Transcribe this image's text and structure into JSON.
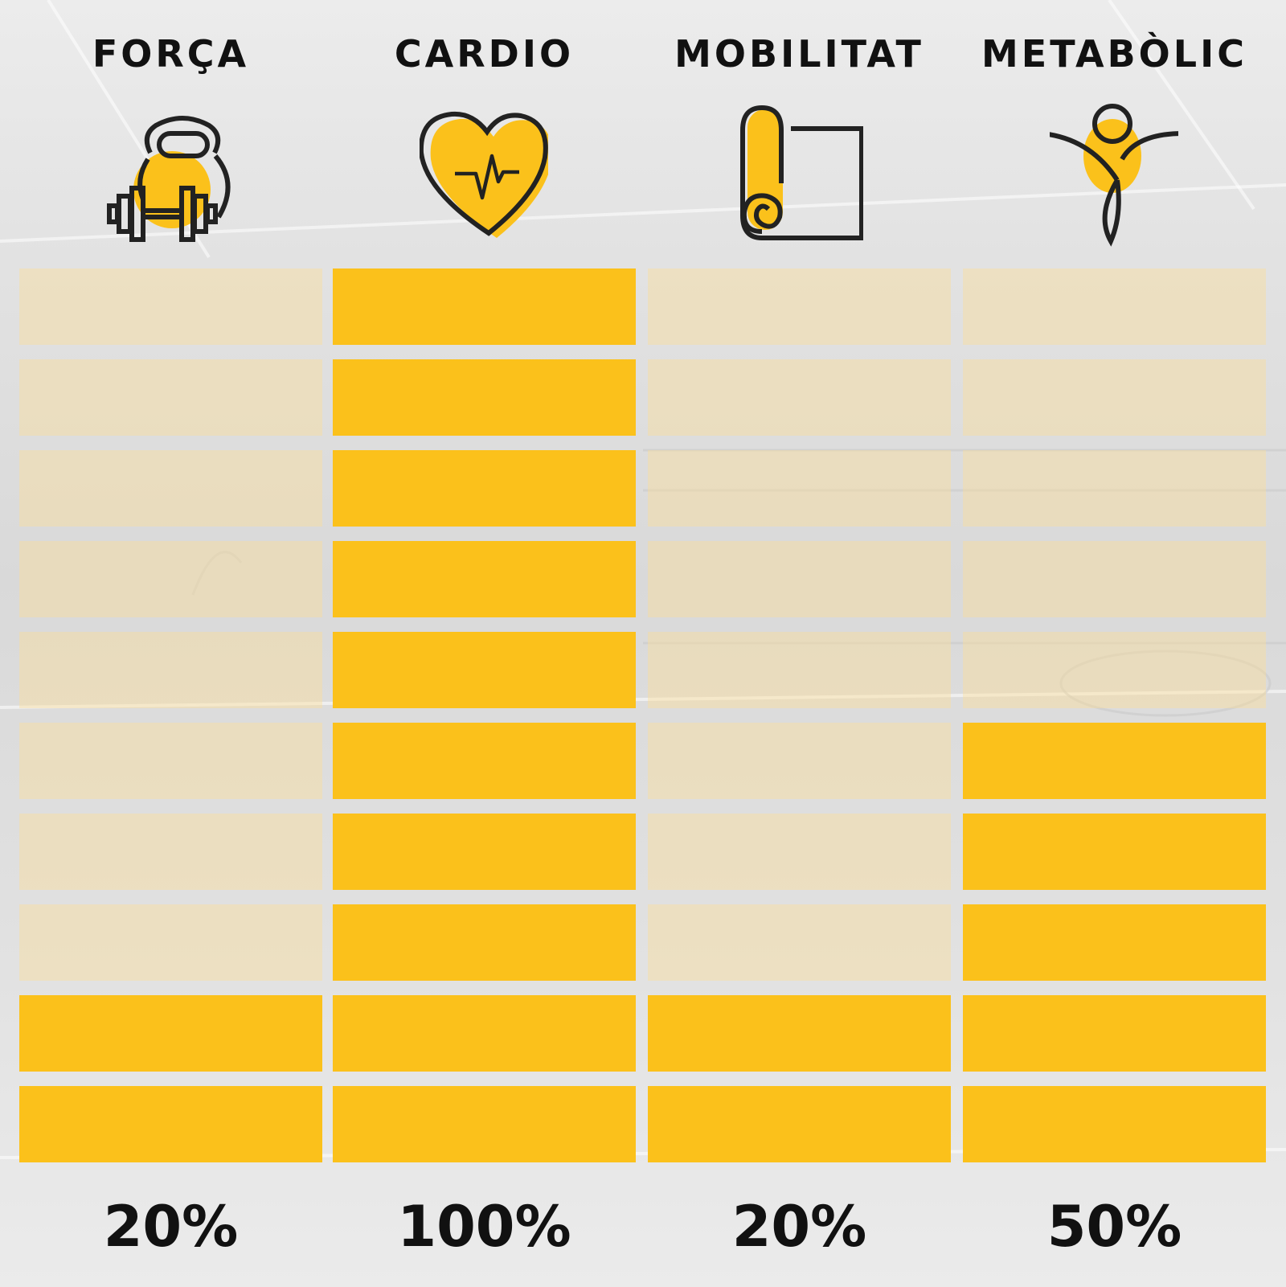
{
  "chart_data": {
    "type": "bar",
    "categories": [
      "FORÇA",
      "CARDIO",
      "MOBILITAT",
      "METABÒLIC"
    ],
    "values": [
      20,
      100,
      20,
      50
    ],
    "value_labels": [
      "20%",
      "100%",
      "20%",
      "50%"
    ],
    "ylim": [
      0,
      100
    ],
    "segments_per_bar": 10,
    "icons": [
      "kettlebell-dumbbell-icon",
      "heart-pulse-icon",
      "yoga-mat-icon",
      "stretching-person-icon"
    ],
    "colors": {
      "filled": "#fbc11b",
      "empty": "#f5e3b3",
      "text": "#111111"
    }
  }
}
